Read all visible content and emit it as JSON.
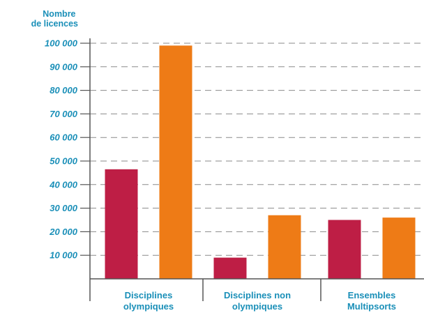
{
  "chart_data": {
    "type": "bar",
    "ylabel": [
      "Nombre",
      "de licences"
    ],
    "ylim": [
      0,
      100000
    ],
    "yticks": [
      10000,
      20000,
      30000,
      40000,
      50000,
      60000,
      70000,
      80000,
      90000,
      100000
    ],
    "ytick_labels": [
      "10 000",
      "20 000",
      "30 000",
      "40 000",
      "50 000",
      "60 000",
      "70 000",
      "80 000",
      "90 000",
      "100 000"
    ],
    "categories": [
      [
        "Disciplines",
        "olympiques"
      ],
      [
        "Disciplines non",
        "olympiques"
      ],
      [
        "Ensembles",
        "Multipsorts"
      ]
    ],
    "series": [
      {
        "values": [
          46500,
          9000,
          25000
        ]
      },
      {
        "values": [
          99000,
          27000,
          26000
        ]
      }
    ],
    "grid": true,
    "legend": "none"
  },
  "colors": {
    "series": [
      "#be1e45",
      "#ee7b16"
    ],
    "text": "#1a8fb8",
    "axis": "#555555",
    "grid": "#8a8a8a"
  }
}
